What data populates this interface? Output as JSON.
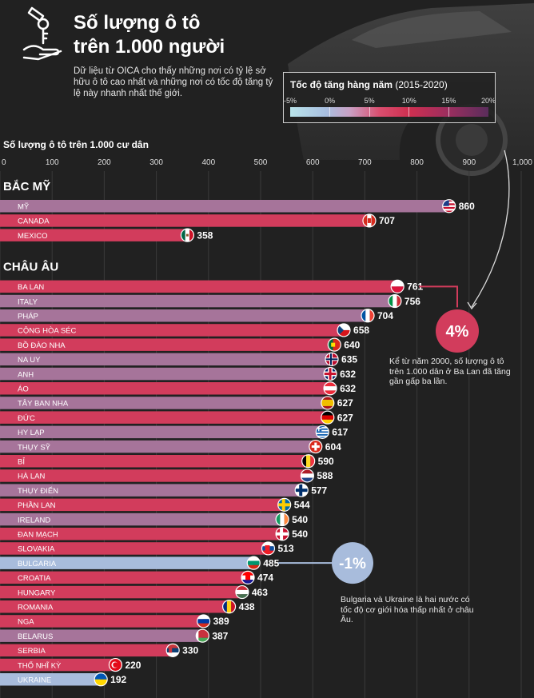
{
  "header": {
    "title": "Số lượng ô tô\ntrên 1.000 người",
    "intro": "Dữ liệu từ OICA cho thấy những nơi có tỷ lệ sở hữu ô tô cao nhất và những nơi có tốc độ tăng tỷ lệ này nhanh nhất thế giới."
  },
  "legend": {
    "title_bold": "Tốc độ tăng hàng năm",
    "title_rest": " (2015-2020)",
    "ticks": [
      "-5%",
      "0%",
      "5%",
      "10%",
      "15%",
      "20%"
    ]
  },
  "annotations": {
    "poland_value": "4%",
    "poland_note": "Kể từ năm 2000, số lượng ô tô trên 1.000 dân ở Ba Lan đã tăng gần gấp ba lần.",
    "bulgaria_value": "-1%",
    "bulgaria_note": "Bulgaria và Ukraine là hai nước có tốc độ cơ giới hóa thấp nhất ở châu Âu."
  },
  "colors": {
    "pink": "#d23c5c",
    "mauve": "#a6749a",
    "lightblue": "#a8bcdc",
    "background": "#212121"
  },
  "chart_data": {
    "type": "bar",
    "orientation": "horizontal",
    "xlabel": "Số lượng ô tô trên 1.000 cư dân",
    "xlim": [
      0,
      1000
    ],
    "xticks": [
      "0",
      "100",
      "200",
      "300",
      "400",
      "500",
      "600",
      "700",
      "800",
      "900",
      "1,000"
    ],
    "groups": [
      {
        "name": "BẮC MỸ",
        "items": [
          {
            "label": "MỸ",
            "value": 860,
            "color": "mauve",
            "flag": "usa"
          },
          {
            "label": "CANADA",
            "value": 707,
            "color": "pink",
            "flag": "canada"
          },
          {
            "label": "MEXICO",
            "value": 358,
            "color": "pink",
            "flag": "mexico"
          }
        ]
      },
      {
        "name": "CHÂU ÂU",
        "items": [
          {
            "label": "BA LAN",
            "value": 761,
            "color": "pink",
            "flag": "poland"
          },
          {
            "label": "ITALY",
            "value": 756,
            "color": "mauve",
            "flag": "italy"
          },
          {
            "label": "PHÁP",
            "value": 704,
            "color": "mauve",
            "flag": "france"
          },
          {
            "label": "CỘNG HÒA SÉC",
            "value": 658,
            "color": "pink",
            "flag": "czech"
          },
          {
            "label": "BỒ ĐÀO NHA",
            "value": 640,
            "color": "pink",
            "flag": "portugal"
          },
          {
            "label": "NA UY",
            "value": 635,
            "color": "mauve",
            "flag": "norway"
          },
          {
            "label": "ANH",
            "value": 632,
            "color": "mauve",
            "flag": "uk"
          },
          {
            "label": "ÁO",
            "value": 632,
            "color": "pink",
            "flag": "austria"
          },
          {
            "label": "TÂY BAN NHA",
            "value": 627,
            "color": "mauve",
            "flag": "spain"
          },
          {
            "label": "ĐỨC",
            "value": 627,
            "color": "pink",
            "flag": "germany"
          },
          {
            "label": "HY LẠP",
            "value": 617,
            "color": "mauve",
            "flag": "greece"
          },
          {
            "label": "THỤY SỸ",
            "value": 604,
            "color": "mauve",
            "flag": "switzerland"
          },
          {
            "label": "BỈ",
            "value": 590,
            "color": "pink",
            "flag": "belgium"
          },
          {
            "label": "HÀ LAN",
            "value": 588,
            "color": "pink",
            "flag": "netherlands"
          },
          {
            "label": "THỤY ĐIỂN",
            "value": 577,
            "color": "mauve",
            "flag": "finland"
          },
          {
            "label": "PHẦN LAN",
            "value": 544,
            "color": "pink",
            "flag": "sweden"
          },
          {
            "label": "IRELAND",
            "value": 540,
            "color": "mauve",
            "flag": "ireland"
          },
          {
            "label": "ĐAN MẠCH",
            "value": 540,
            "color": "pink",
            "flag": "denmark"
          },
          {
            "label": "SLOVAKIA",
            "value": 513,
            "color": "pink",
            "flag": "slovakia"
          },
          {
            "label": "BULGARIA",
            "value": 485,
            "color": "lightblue",
            "flag": "bulgaria"
          },
          {
            "label": "CROATIA",
            "value": 474,
            "color": "pink",
            "flag": "croatia"
          },
          {
            "label": "HUNGARY",
            "value": 463,
            "color": "pink",
            "flag": "hungary"
          },
          {
            "label": "ROMANIA",
            "value": 438,
            "color": "pink",
            "flag": "romania"
          },
          {
            "label": "NGA",
            "value": 389,
            "color": "pink",
            "flag": "russia"
          },
          {
            "label": "BELARUS",
            "value": 387,
            "color": "mauve",
            "flag": "belarus"
          },
          {
            "label": "SERBIA",
            "value": 330,
            "color": "pink",
            "flag": "serbia"
          },
          {
            "label": "THỔ NHĨ KỲ",
            "value": 220,
            "color": "pink",
            "flag": "turkey"
          },
          {
            "label": "UKRAINE",
            "value": 192,
            "color": "lightblue",
            "flag": "ukraine"
          }
        ]
      }
    ]
  }
}
